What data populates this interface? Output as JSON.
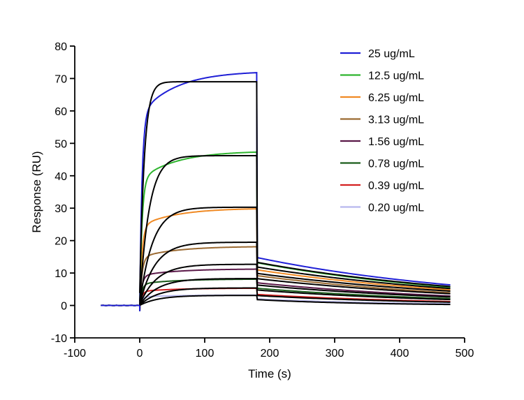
{
  "chart_data": {
    "type": "line",
    "title": "",
    "xlabel": "Time (s)",
    "ylabel": "Response  (RU)",
    "xlim": [
      -100,
      500
    ],
    "ylim": [
      -10,
      80
    ],
    "x_ticks": [
      -100,
      0,
      100,
      200,
      300,
      400,
      500
    ],
    "y_ticks": [
      -10,
      0,
      10,
      20,
      30,
      40,
      50,
      60,
      70,
      80
    ],
    "grid": false,
    "legend_position": "top-right",
    "association_start_s": 0,
    "dissociation_start_s": 180,
    "baseline_start_s": -60,
    "end_s": 480,
    "fit_line_color": "#000000",
    "series": [
      {
        "name": "25 ug/mL",
        "color": "#1f1fd6",
        "plateau_end": 71.8,
        "fit_plateau": 69.0,
        "dissociation_start": 14.8,
        "end": 6.3,
        "fit_end": 5.8
      },
      {
        "name": "12.5 ug/mL",
        "color": "#2fb52f",
        "plateau_end": 47.3,
        "fit_plateau": 46.2,
        "dissociation_start": 13.2,
        "end": 5.6,
        "fit_end": 5.2
      },
      {
        "name": "6.25 ug/mL",
        "color": "#f08a24",
        "plateau_end": 29.8,
        "fit_plateau": 30.3,
        "dissociation_start": 11.0,
        "end": 4.8,
        "fit_end": 4.4
      },
      {
        "name": "3.13 ug/mL",
        "color": "#9b6a32",
        "plateau_end": 18.1,
        "fit_plateau": 19.5,
        "dissociation_start": 9.2,
        "end": 3.9,
        "fit_end": 3.6
      },
      {
        "name": "1.56 ug/mL",
        "color": "#5a1848",
        "plateau_end": 11.2,
        "fit_plateau": 12.7,
        "dissociation_start": 7.0,
        "end": 2.9,
        "fit_end": 2.6
      },
      {
        "name": "0.78 ug/mL",
        "color": "#1a5c1a",
        "plateau_end": 8.1,
        "fit_plateau": 8.3,
        "dissociation_start": 5.3,
        "end": 2.1,
        "fit_end": 1.8
      },
      {
        "name": "0.39 ug/mL",
        "color": "#d42020",
        "plateau_end": 5.3,
        "fit_plateau": 5.4,
        "dissociation_start": 3.4,
        "end": 1.2,
        "fit_end": 1.0
      },
      {
        "name": "0.20 ug/mL",
        "color": "#b8b8ee",
        "plateau_end": 3.2,
        "fit_plateau": 3.1,
        "dissociation_start": 2.0,
        "end": 0.5,
        "fit_end": 0.3
      }
    ]
  }
}
